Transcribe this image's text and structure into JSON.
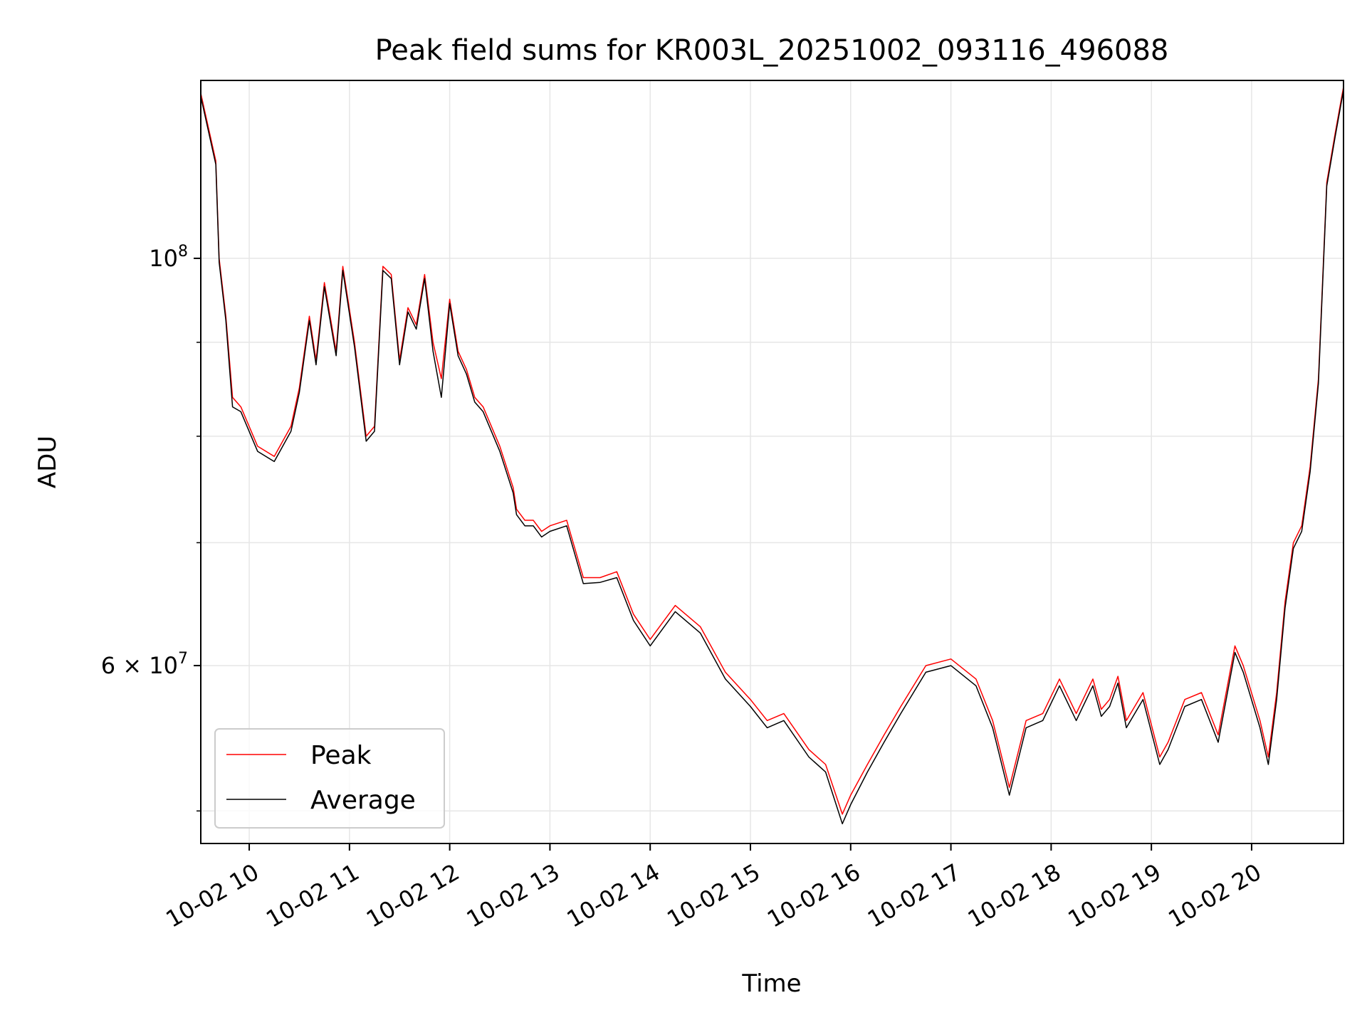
{
  "chart_data": {
    "type": "line",
    "title": "Peak field sums for KR003L_20251002_093116_496088",
    "xlabel": "Time",
    "ylabel": "ADU",
    "yscale": "log",
    "grid": true,
    "legend_position": "lower-left",
    "xlim": [
      "2025-10-02 09:31",
      "2025-10-02 20:55"
    ],
    "ylim": [
      48000000,
      125000000
    ],
    "x_tick_labels": [
      "10-02 10",
      "10-02 11",
      "10-02 12",
      "10-02 13",
      "10-02 14",
      "10-02 15",
      "10-02 16",
      "10-02 17",
      "10-02 18",
      "10-02 19",
      "10-02 20"
    ],
    "y_tick_labels": [
      {
        "base": "10",
        "exp": "8",
        "value": 100000000
      },
      {
        "base": "6 × 10",
        "exp": "7",
        "value": 60000000
      }
    ],
    "y_minor_ticks": [
      50000000,
      70000000,
      80000000,
      90000000
    ],
    "x": [
      "2025-10-02 09:31",
      "2025-10-02 09:40",
      "2025-10-02 09:42",
      "2025-10-02 09:46",
      "2025-10-02 09:50",
      "2025-10-02 09:55",
      "2025-10-02 10:05",
      "2025-10-02 10:15",
      "2025-10-02 10:25",
      "2025-10-02 10:30",
      "2025-10-02 10:36",
      "2025-10-02 10:40",
      "2025-10-02 10:45",
      "2025-10-02 10:52",
      "2025-10-02 10:56",
      "2025-10-02 11:03",
      "2025-10-02 11:10",
      "2025-10-02 11:15",
      "2025-10-02 11:20",
      "2025-10-02 11:25",
      "2025-10-02 11:30",
      "2025-10-02 11:35",
      "2025-10-02 11:40",
      "2025-10-02 11:45",
      "2025-10-02 11:50",
      "2025-10-02 11:55",
      "2025-10-02 12:00",
      "2025-10-02 12:05",
      "2025-10-02 12:10",
      "2025-10-02 12:15",
      "2025-10-02 12:20",
      "2025-10-02 12:30",
      "2025-10-02 12:38",
      "2025-10-02 12:40",
      "2025-10-02 12:45",
      "2025-10-02 12:50",
      "2025-10-02 12:55",
      "2025-10-02 13:00",
      "2025-10-02 13:10",
      "2025-10-02 13:20",
      "2025-10-02 13:30",
      "2025-10-02 13:40",
      "2025-10-02 13:50",
      "2025-10-02 14:00",
      "2025-10-02 14:15",
      "2025-10-02 14:30",
      "2025-10-02 14:45",
      "2025-10-02 15:00",
      "2025-10-02 15:10",
      "2025-10-02 15:20",
      "2025-10-02 15:35",
      "2025-10-02 15:45",
      "2025-10-02 15:55",
      "2025-10-02 16:00",
      "2025-10-02 16:10",
      "2025-10-02 16:20",
      "2025-10-02 16:30",
      "2025-10-02 16:45",
      "2025-10-02 17:00",
      "2025-10-02 17:15",
      "2025-10-02 17:25",
      "2025-10-02 17:35",
      "2025-10-02 17:45",
      "2025-10-02 17:55",
      "2025-10-02 18:05",
      "2025-10-02 18:15",
      "2025-10-02 18:25",
      "2025-10-02 18:30",
      "2025-10-02 18:35",
      "2025-10-02 18:40",
      "2025-10-02 18:45",
      "2025-10-02 18:55",
      "2025-10-02 19:05",
      "2025-10-02 19:10",
      "2025-10-02 19:20",
      "2025-10-02 19:30",
      "2025-10-02 19:40",
      "2025-10-02 19:50",
      "2025-10-02 19:55",
      "2025-10-02 20:05",
      "2025-10-02 20:10",
      "2025-10-02 20:15",
      "2025-10-02 20:20",
      "2025-10-02 20:25",
      "2025-10-02 20:30",
      "2025-10-02 20:35",
      "2025-10-02 20:40",
      "2025-10-02 20:45",
      "2025-10-02 20:50",
      "2025-10-02 20:55"
    ],
    "series": [
      {
        "name": "Peak",
        "color": "#ff0000",
        "values": [
          123000000,
          113000000,
          100000000,
          93000000,
          84000000,
          83000000,
          79000000,
          78000000,
          81000000,
          85000000,
          93000000,
          88000000,
          97000000,
          89000000,
          99000000,
          90000000,
          80000000,
          81000000,
          99000000,
          98000000,
          88000000,
          94000000,
          92000000,
          98000000,
          90000000,
          86000000,
          95000000,
          89000000,
          87000000,
          84000000,
          83000000,
          79000000,
          75000000,
          73000000,
          72000000,
          72000000,
          71000000,
          71500000,
          72000000,
          67000000,
          67000000,
          67500000,
          64000000,
          62000000,
          64700000,
          63000000,
          59500000,
          57500000,
          56000000,
          56500000,
          54000000,
          53000000,
          49800000,
          51000000,
          53000000,
          55000000,
          57000000,
          60000000,
          60500000,
          59000000,
          56000000,
          51500000,
          56000000,
          56500000,
          59000000,
          56500000,
          59000000,
          56800000,
          57500000,
          59200000,
          56000000,
          58000000,
          53500000,
          54500000,
          57500000,
          58000000,
          55000000,
          61500000,
          60000000,
          56000000,
          53500000,
          58000000,
          65000000,
          70000000,
          71500000,
          77000000,
          86000000,
          110000000,
          117000000,
          124000000
        ]
      },
      {
        "name": "Average",
        "color": "#000000",
        "values": [
          122500000,
          112500000,
          99500000,
          92500000,
          83000000,
          82500000,
          78500000,
          77500000,
          80500000,
          84500000,
          92500000,
          87500000,
          96500000,
          88500000,
          98500000,
          89500000,
          79500000,
          80500000,
          98500000,
          97500000,
          87500000,
          93500000,
          91500000,
          97500000,
          89000000,
          84000000,
          94500000,
          88500000,
          86500000,
          83500000,
          82500000,
          78500000,
          74500000,
          72500000,
          71500000,
          71500000,
          70500000,
          71000000,
          71500000,
          66500000,
          66600000,
          67000000,
          63500000,
          61500000,
          64200000,
          62500000,
          59000000,
          57000000,
          55500000,
          56000000,
          53500000,
          52500000,
          49200000,
          50400000,
          52500000,
          54500000,
          56500000,
          59500000,
          60000000,
          58500000,
          55500000,
          51000000,
          55500000,
          56000000,
          58500000,
          56000000,
          58500000,
          56300000,
          57000000,
          58700000,
          55500000,
          57500000,
          53000000,
          54000000,
          57000000,
          57500000,
          54500000,
          61000000,
          59500000,
          55500000,
          53000000,
          57500000,
          64500000,
          69500000,
          71000000,
          76500000,
          85500000,
          109500000,
          116500000,
          123500000
        ]
      }
    ]
  }
}
